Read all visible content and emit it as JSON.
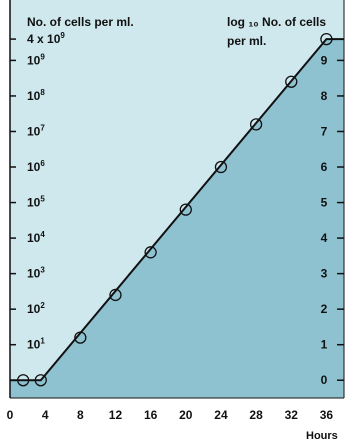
{
  "chart_data": {
    "type": "line",
    "left_axis_title": "No. of cells per ml.",
    "right_axis_title_line1": "log ₁₀ No. of cells",
    "right_axis_title_line2": "per ml.",
    "xlabel": "Hours",
    "x_ticks": [
      "0",
      "4",
      "8",
      "12",
      "16",
      "20",
      "24",
      "28",
      "32",
      "36"
    ],
    "left_ticks": [
      {
        "base": "10",
        "exp": "1",
        "log": 1
      },
      {
        "base": "10",
        "exp": "2",
        "log": 2
      },
      {
        "base": "10",
        "exp": "3",
        "log": 3
      },
      {
        "base": "10",
        "exp": "4",
        "log": 4
      },
      {
        "base": "10",
        "exp": "5",
        "log": 5
      },
      {
        "base": "10",
        "exp": "6",
        "log": 6
      },
      {
        "base": "10",
        "exp": "7",
        "log": 7
      },
      {
        "base": "10",
        "exp": "8",
        "log": 8
      },
      {
        "base": "10",
        "exp": "9",
        "log": 9
      },
      {
        "base": "4 x 10",
        "exp": "9",
        "log": 9.6
      }
    ],
    "right_ticks": [
      "0",
      "1",
      "2",
      "3",
      "4",
      "5",
      "6",
      "7",
      "8",
      "9"
    ],
    "xlim": [
      0,
      38
    ],
    "ylim": [
      -0.5,
      10.7
    ],
    "x": [
      1.5,
      3.5,
      8,
      12,
      16,
      20,
      24,
      28,
      32,
      36
    ],
    "y": [
      0,
      0,
      1.2,
      2.4,
      3.6,
      4.8,
      6.0,
      7.2,
      8.4,
      9.6
    ],
    "line_x": [
      0,
      3.5,
      36,
      38
    ],
    "line_y": [
      0,
      0,
      9.6,
      9.6
    ],
    "colors": {
      "upper_fill": "#cfe8ee",
      "lower_fill": "#8ec2d0",
      "line": "#111111"
    }
  }
}
